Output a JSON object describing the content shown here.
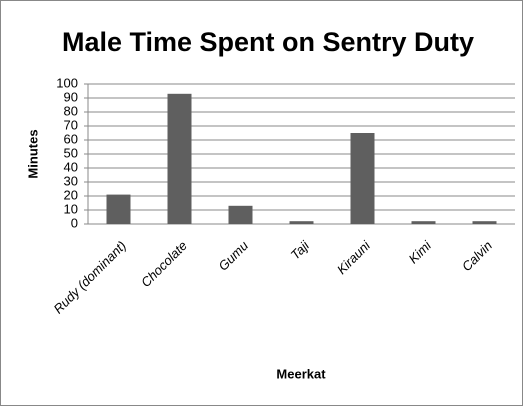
{
  "chart_data": {
    "type": "bar",
    "title": "Male Time Spent on Sentry Duty",
    "x_label": "Meerkat",
    "y_label": "Minutes",
    "categories": [
      "Rudy (dominant)",
      "Chocolate",
      "Gumu",
      "Taji",
      "Kirauni",
      "Kimi",
      "Calvin"
    ],
    "values": [
      21,
      93,
      13,
      2,
      65,
      2,
      2
    ],
    "color": "#5f5f5f",
    "ylim": [
      0,
      100
    ],
    "yticks": [
      0,
      10,
      20,
      30,
      40,
      50,
      60,
      70,
      80,
      90,
      100
    ],
    "grid": true
  }
}
